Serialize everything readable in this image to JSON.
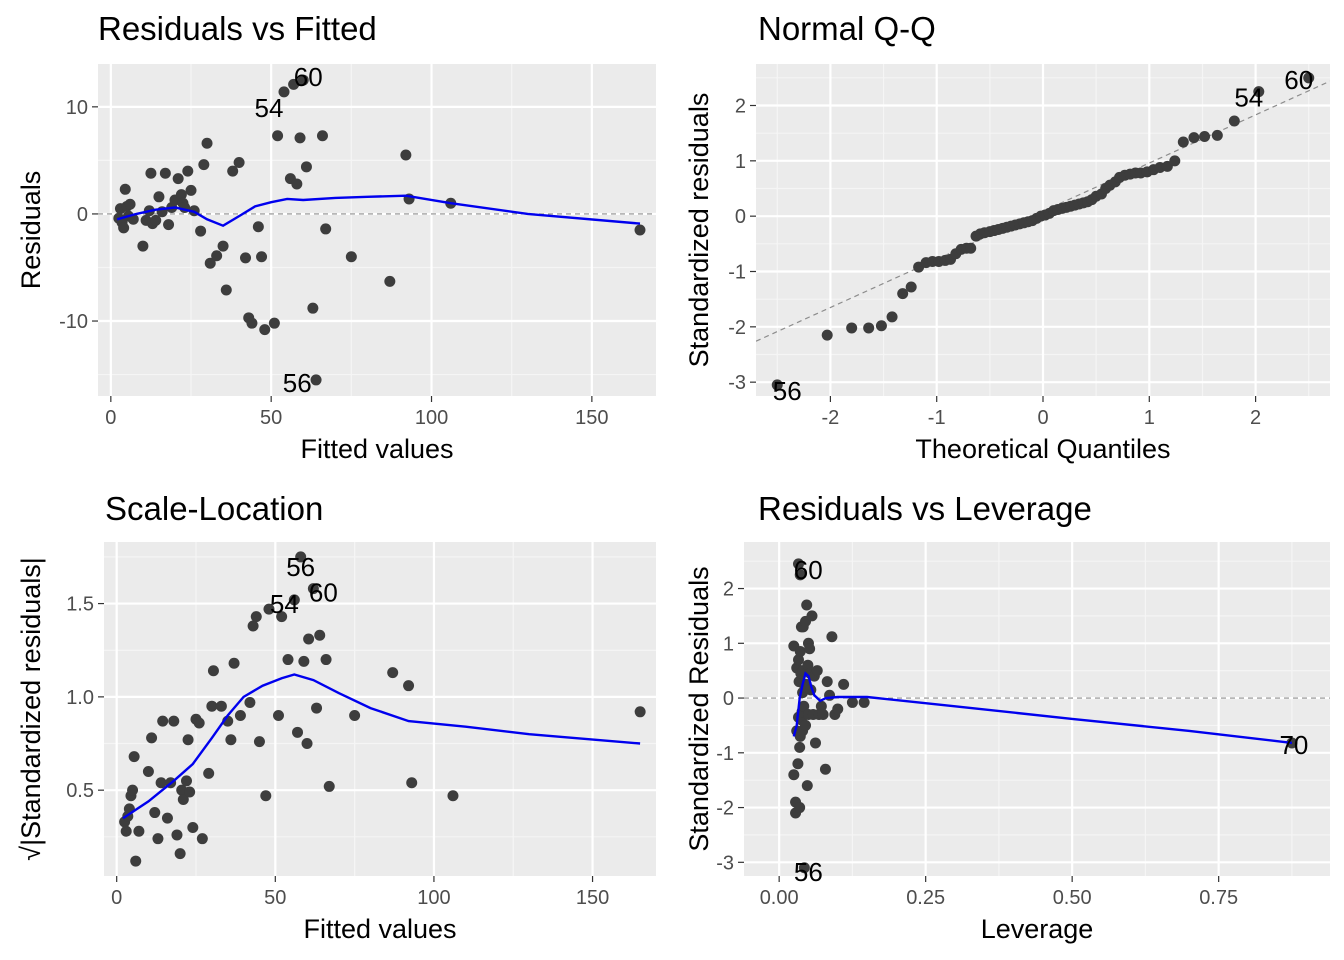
{
  "colors": {
    "panel_bg": "#EBEBEB",
    "grid_major": "#FFFFFF",
    "grid_minor": "#F5F5F5",
    "points": "#3D3D3D",
    "smooth": "#0000EE",
    "refline": "#8C8C8C",
    "tick_text": "#4D4D4D"
  },
  "chart_data": [
    {
      "id": "residuals-vs-fitted",
      "type": "scatter",
      "title": "Residuals vs Fitted",
      "xlabel": "Fitted values",
      "ylabel": "Residuals",
      "xlim": [
        -4,
        170
      ],
      "ylim": [
        -17,
        14
      ],
      "xticks": [
        0,
        50,
        100,
        150
      ],
      "yticks": [
        -10,
        0,
        10
      ],
      "xtick_labels": [
        "0",
        "50",
        "100",
        "150"
      ],
      "ytick_labels": [
        "-10",
        "0",
        "10"
      ],
      "grid": true,
      "hline": 0,
      "points": [
        [
          2.5,
          -0.4
        ],
        [
          3,
          0.5
        ],
        [
          3.5,
          -0.8
        ],
        [
          4,
          -1.3
        ],
        [
          4.5,
          2.3
        ],
        [
          5,
          0.7
        ],
        [
          5.5,
          -0.2
        ],
        [
          6,
          0.9
        ],
        [
          7,
          -0.5
        ],
        [
          10,
          -3
        ],
        [
          11,
          -0.6
        ],
        [
          12,
          0.3
        ],
        [
          12.5,
          3.8
        ],
        [
          13,
          -0.9
        ],
        [
          14,
          -0.6
        ],
        [
          15,
          1.6
        ],
        [
          16,
          0.2
        ],
        [
          17,
          3.8
        ],
        [
          18,
          -1
        ],
        [
          19,
          0.6
        ],
        [
          20,
          1.3
        ],
        [
          21,
          3.3
        ],
        [
          22,
          1.8
        ],
        [
          22.5,
          1
        ],
        [
          23,
          0.6
        ],
        [
          24,
          4
        ],
        [
          25,
          2.2
        ],
        [
          26,
          0.3
        ],
        [
          28,
          -1.6
        ],
        [
          29,
          4.6
        ],
        [
          30,
          6.6
        ],
        [
          31,
          -4.6
        ],
        [
          33,
          -3.9
        ],
        [
          35,
          -3
        ],
        [
          36,
          -7.1
        ],
        [
          38,
          4
        ],
        [
          40,
          4.8
        ],
        [
          42,
          -4.1
        ],
        [
          43,
          -9.7
        ],
        [
          44,
          -10.2
        ],
        [
          46,
          -1.2
        ],
        [
          47,
          -4
        ],
        [
          48,
          -10.8
        ],
        [
          51,
          -10.2
        ],
        [
          52,
          7.3
        ],
        [
          54,
          11.4
        ],
        [
          56,
          3.3
        ],
        [
          57,
          12.1
        ],
        [
          58,
          2.8
        ],
        [
          59,
          7.1
        ],
        [
          60,
          12.5
        ],
        [
          61,
          4.4
        ],
        [
          63,
          -8.8
        ],
        [
          64,
          -15.5
        ],
        [
          66,
          7.3
        ],
        [
          67,
          -1.4
        ],
        [
          75,
          -4
        ],
        [
          87,
          -6.3
        ],
        [
          92,
          5.5
        ],
        [
          93,
          1.4
        ],
        [
          106,
          1
        ],
        [
          165,
          -1.5
        ]
      ],
      "smooth": [
        [
          2,
          -0.5
        ],
        [
          8,
          0
        ],
        [
          14,
          0.4
        ],
        [
          20,
          0.6
        ],
        [
          26,
          0.2
        ],
        [
          30,
          -0.5
        ],
        [
          35,
          -1.1
        ],
        [
          40,
          -0.2
        ],
        [
          45,
          0.7
        ],
        [
          50,
          1.1
        ],
        [
          55,
          1.4
        ],
        [
          60,
          1.3
        ],
        [
          70,
          1.5
        ],
        [
          80,
          1.6
        ],
        [
          92,
          1.7
        ],
        [
          106,
          1
        ],
        [
          130,
          0
        ],
        [
          165,
          -0.9
        ]
      ],
      "annotations": [
        {
          "label": "60",
          "x": 60,
          "y": 12.5
        },
        {
          "label": "54",
          "x": 54,
          "y": 11.4
        },
        {
          "label": "56",
          "x": 57.5,
          "y": -15.5
        }
      ]
    },
    {
      "id": "normal-qq",
      "type": "scatter",
      "title": "Normal Q-Q",
      "xlabel": "Theoretical Quantiles",
      "ylabel": "Standardized residuals",
      "xlim": [
        -2.7,
        2.7
      ],
      "ylim": [
        -3.25,
        2.75
      ],
      "xticks": [
        -2,
        -1,
        0,
        1,
        2
      ],
      "yticks": [
        -3,
        -2,
        -1,
        0,
        1,
        2
      ],
      "xtick_labels": [
        "-2",
        "-1",
        "0",
        "1",
        "2"
      ],
      "ytick_labels": [
        "-3",
        "-2",
        "-1",
        "0",
        "1",
        "2"
      ],
      "grid": true,
      "refline": [
        [
          -2.7,
          -2.26
        ],
        [
          2.7,
          2.44
        ]
      ],
      "points": [
        [
          -2.5,
          -3.05
        ],
        [
          -2.03,
          -2.15
        ],
        [
          -1.8,
          -2.02
        ],
        [
          -1.64,
          -2.02
        ],
        [
          -1.52,
          -1.98
        ],
        [
          -1.42,
          -1.82
        ],
        [
          -1.32,
          -1.4
        ],
        [
          -1.24,
          -1.28
        ],
        [
          -1.17,
          -0.92
        ],
        [
          -1.1,
          -0.84
        ],
        [
          -1.04,
          -0.82
        ],
        [
          -0.98,
          -0.82
        ],
        [
          -0.92,
          -0.8
        ],
        [
          -0.87,
          -0.78
        ],
        [
          -0.82,
          -0.68
        ],
        [
          -0.77,
          -0.6
        ],
        [
          -0.72,
          -0.58
        ],
        [
          -0.68,
          -0.58
        ],
        [
          -0.63,
          -0.36
        ],
        [
          -0.59,
          -0.32
        ],
        [
          -0.55,
          -0.3
        ],
        [
          -0.5,
          -0.28
        ],
        [
          -0.46,
          -0.26
        ],
        [
          -0.42,
          -0.24
        ],
        [
          -0.38,
          -0.22
        ],
        [
          -0.34,
          -0.2
        ],
        [
          -0.3,
          -0.18
        ],
        [
          -0.26,
          -0.16
        ],
        [
          -0.22,
          -0.14
        ],
        [
          -0.18,
          -0.12
        ],
        [
          -0.14,
          -0.1
        ],
        [
          -0.1,
          -0.08
        ],
        [
          -0.06,
          -0.04
        ],
        [
          -0.02,
          0
        ],
        [
          0.02,
          0.02
        ],
        [
          0.06,
          0.05
        ],
        [
          0.1,
          0.1
        ],
        [
          0.14,
          0.12
        ],
        [
          0.18,
          0.14
        ],
        [
          0.22,
          0.16
        ],
        [
          0.26,
          0.18
        ],
        [
          0.3,
          0.2
        ],
        [
          0.34,
          0.22
        ],
        [
          0.38,
          0.24
        ],
        [
          0.42,
          0.26
        ],
        [
          0.46,
          0.3
        ],
        [
          0.5,
          0.36
        ],
        [
          0.55,
          0.4
        ],
        [
          0.59,
          0.5
        ],
        [
          0.63,
          0.56
        ],
        [
          0.68,
          0.62
        ],
        [
          0.72,
          0.7
        ],
        [
          0.77,
          0.74
        ],
        [
          0.82,
          0.76
        ],
        [
          0.87,
          0.78
        ],
        [
          0.92,
          0.78
        ],
        [
          0.98,
          0.8
        ],
        [
          1.04,
          0.84
        ],
        [
          1.1,
          0.88
        ],
        [
          1.17,
          0.9
        ],
        [
          1.24,
          1
        ],
        [
          1.32,
          1.34
        ],
        [
          1.42,
          1.42
        ],
        [
          1.52,
          1.44
        ],
        [
          1.64,
          1.46
        ],
        [
          1.8,
          1.72
        ],
        [
          2.03,
          2.25
        ],
        [
          2.5,
          2.5
        ]
      ],
      "annotations": [
        {
          "label": "56",
          "x": -2.5,
          "y": -3.05
        },
        {
          "label": "54",
          "x": 2.03,
          "y": 2.25
        },
        {
          "label": "60",
          "x": 2.5,
          "y": 2.5
        }
      ]
    },
    {
      "id": "scale-location",
      "type": "scatter",
      "title": "Scale-Location",
      "xlabel": "Fitted values",
      "ylabel": "√|Standardized residuals|",
      "xlim": [
        -4,
        170
      ],
      "ylim": [
        0.04,
        1.83
      ],
      "xticks": [
        0,
        50,
        100,
        150
      ],
      "yticks": [
        0.5,
        1.0,
        1.5
      ],
      "xtick_labels": [
        "0",
        "50",
        "100",
        "150"
      ],
      "ytick_labels": [
        "0.5",
        "1.0",
        "1.5"
      ],
      "grid": true,
      "points": [
        [
          2.5,
          0.33
        ],
        [
          3,
          0.28
        ],
        [
          3.5,
          0.36
        ],
        [
          4,
          0.4
        ],
        [
          4.5,
          0.47
        ],
        [
          5,
          0.5
        ],
        [
          5.5,
          0.68
        ],
        [
          6,
          0.12
        ],
        [
          7,
          0.28
        ],
        [
          10,
          0.6
        ],
        [
          11,
          0.78
        ],
        [
          12,
          0.38
        ],
        [
          13,
          0.24
        ],
        [
          14,
          0.54
        ],
        [
          14.5,
          0.87
        ],
        [
          16,
          0.35
        ],
        [
          17,
          0.54
        ],
        [
          18,
          0.87
        ],
        [
          19,
          0.26
        ],
        [
          20,
          0.16
        ],
        [
          20.5,
          0.5
        ],
        [
          21,
          0.45
        ],
        [
          22,
          0.55
        ],
        [
          22.5,
          0.77
        ],
        [
          23,
          0.49
        ],
        [
          24,
          0.3
        ],
        [
          25,
          0.88
        ],
        [
          26,
          0.86
        ],
        [
          27,
          0.24
        ],
        [
          29,
          0.59
        ],
        [
          30,
          0.95
        ],
        [
          30.5,
          1.14
        ],
        [
          33,
          0.95
        ],
        [
          35,
          0.87
        ],
        [
          36,
          0.77
        ],
        [
          37,
          1.18
        ],
        [
          39,
          0.9
        ],
        [
          42,
          0.97
        ],
        [
          43,
          1.38
        ],
        [
          44,
          1.43
        ],
        [
          45,
          0.76
        ],
        [
          47,
          0.47
        ],
        [
          48,
          1.47
        ],
        [
          51,
          0.9
        ],
        [
          52,
          1.43
        ],
        [
          54,
          1.2
        ],
        [
          56,
          1.52
        ],
        [
          57,
          0.81
        ],
        [
          58,
          1.75
        ],
        [
          59,
          1.19
        ],
        [
          60,
          0.75
        ],
        [
          60.5,
          1.31
        ],
        [
          62,
          1.58
        ],
        [
          63,
          0.94
        ],
        [
          64,
          1.33
        ],
        [
          66,
          1.2
        ],
        [
          67,
          0.52
        ],
        [
          75,
          0.9
        ],
        [
          87,
          1.13
        ],
        [
          92,
          1.06
        ],
        [
          93,
          0.54
        ],
        [
          106,
          0.47
        ],
        [
          165,
          0.92
        ]
      ],
      "smooth": [
        [
          2,
          0.35
        ],
        [
          10,
          0.44
        ],
        [
          18,
          0.55
        ],
        [
          24,
          0.64
        ],
        [
          30,
          0.78
        ],
        [
          35,
          0.9
        ],
        [
          40,
          1.0
        ],
        [
          46,
          1.06
        ],
        [
          52,
          1.1
        ],
        [
          56,
          1.12
        ],
        [
          62,
          1.09
        ],
        [
          70,
          1.02
        ],
        [
          80,
          0.94
        ],
        [
          92,
          0.87
        ],
        [
          110,
          0.84
        ],
        [
          130,
          0.8
        ],
        [
          165,
          0.75
        ]
      ],
      "annotations": [
        {
          "label": "56",
          "x": 58,
          "y": 1.75
        },
        {
          "label": "60",
          "x": 62,
          "y": 1.58
        },
        {
          "label": "54",
          "x": 56,
          "y": 1.52
        }
      ]
    },
    {
      "id": "residuals-vs-leverage",
      "type": "scatter",
      "title": "Residuals vs Leverage",
      "xlabel": "Leverage",
      "ylabel": "Standardized Residuals",
      "xlim": [
        -0.06,
        0.94
      ],
      "ylim": [
        -3.25,
        2.85
      ],
      "xticks": [
        0.0,
        0.25,
        0.5,
        0.75
      ],
      "yticks": [
        -3,
        -2,
        -1,
        0,
        1,
        2
      ],
      "xtick_labels": [
        "0.00",
        "0.25",
        "0.50",
        "0.75"
      ],
      "ytick_labels": [
        "-3",
        "-2",
        "-1",
        "0",
        "1",
        "2"
      ],
      "grid": true,
      "hline": 0,
      "points": [
        [
          0.025,
          0.95
        ],
        [
          0.025,
          -1.4
        ],
        [
          0.028,
          -1.9
        ],
        [
          0.028,
          -2.1
        ],
        [
          0.03,
          -0.6
        ],
        [
          0.03,
          0.55
        ],
        [
          0.032,
          -1.2
        ],
        [
          0.033,
          -0.35
        ],
        [
          0.033,
          0.7
        ],
        [
          0.034,
          0.3
        ],
        [
          0.035,
          -2
        ],
        [
          0.035,
          -0.9
        ],
        [
          0.036,
          -0.7
        ],
        [
          0.036,
          0.85
        ],
        [
          0.037,
          0.45
        ],
        [
          0.038,
          -0.4
        ],
        [
          0.038,
          1.3
        ],
        [
          0.039,
          -0.25
        ],
        [
          0.04,
          0.1
        ],
        [
          0.04,
          -0.6
        ],
        [
          0.041,
          1.3
        ],
        [
          0.041,
          0.5
        ],
        [
          0.042,
          -0.15
        ],
        [
          0.043,
          -3.1
        ],
        [
          0.044,
          0.2
        ],
        [
          0.045,
          1.4
        ],
        [
          0.045,
          -0.5
        ],
        [
          0.046,
          0.25
        ],
        [
          0.047,
          1.7
        ],
        [
          0.048,
          -1.6
        ],
        [
          0.049,
          0.6
        ],
        [
          0.05,
          1
        ],
        [
          0.05,
          -0.3
        ],
        [
          0.052,
          0.9
        ],
        [
          0.053,
          0.45
        ],
        [
          0.054,
          0.15
        ],
        [
          0.056,
          1.5
        ],
        [
          0.058,
          -0.3
        ],
        [
          0.06,
          0.4
        ],
        [
          0.062,
          -0.82
        ],
        [
          0.065,
          0.5
        ],
        [
          0.068,
          -0.3
        ],
        [
          0.072,
          -0.15
        ],
        [
          0.075,
          -0.3
        ],
        [
          0.079,
          -1.3
        ],
        [
          0.082,
          0.3
        ],
        [
          0.086,
          0.05
        ],
        [
          0.09,
          1.12
        ],
        [
          0.095,
          -0.3
        ],
        [
          0.1,
          -0.2
        ],
        [
          0.11,
          0.25
        ],
        [
          0.125,
          -0.08
        ],
        [
          0.145,
          -0.08
        ],
        [
          0.875,
          -0.82
        ],
        [
          0.033,
          2.45
        ],
        [
          0.036,
          2.25
        ]
      ],
      "smooth": [
        [
          0.025,
          -0.7
        ],
        [
          0.03,
          -0.5
        ],
        [
          0.035,
          0.0
        ],
        [
          0.04,
          0.25
        ],
        [
          0.045,
          0.45
        ],
        [
          0.05,
          0.4
        ],
        [
          0.055,
          0.2
        ],
        [
          0.06,
          0.05
        ],
        [
          0.07,
          -0.05
        ],
        [
          0.08,
          0.0
        ],
        [
          0.1,
          0.02
        ],
        [
          0.15,
          0.02
        ],
        [
          0.3,
          -0.15
        ],
        [
          0.5,
          -0.38
        ],
        [
          0.7,
          -0.6
        ],
        [
          0.875,
          -0.82
        ]
      ],
      "annotations": [
        {
          "label": "60",
          "x": 0.036,
          "y": 2.45
        },
        {
          "label": "70",
          "x": 0.875,
          "y": -0.82
        },
        {
          "label": "56",
          "x": 0.043,
          "y": -3.1
        }
      ]
    }
  ]
}
